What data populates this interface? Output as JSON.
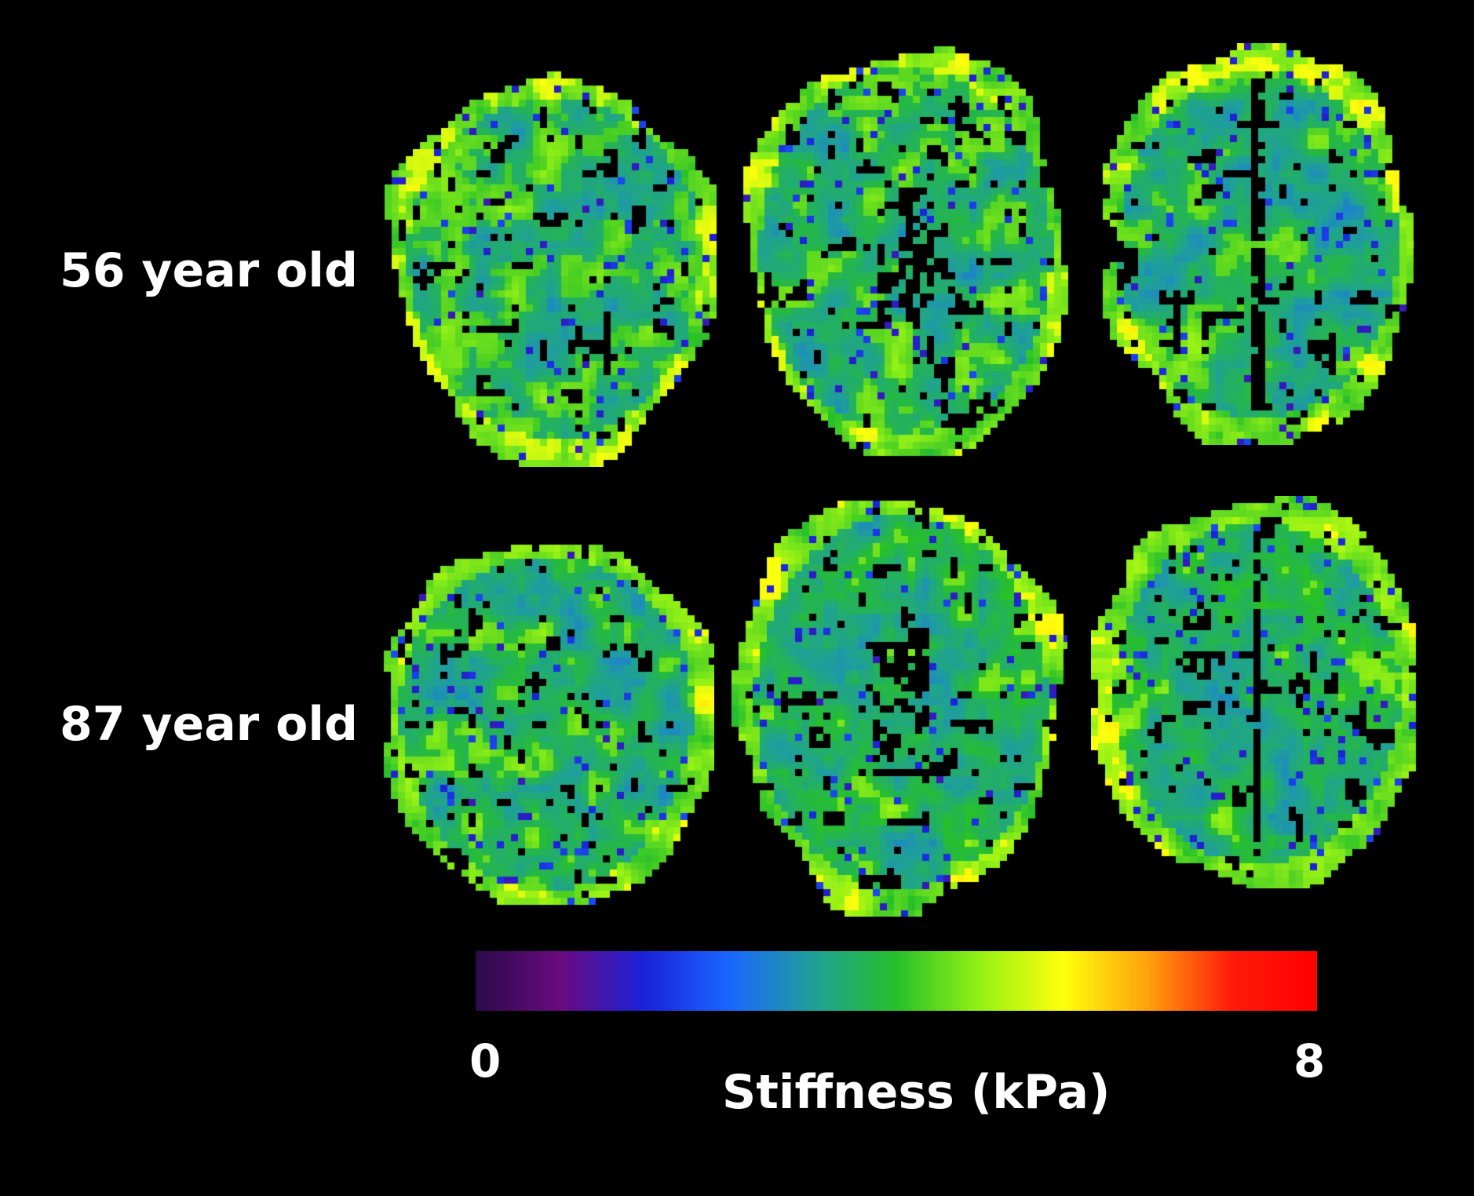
{
  "rows": [
    {
      "label": "56 year old"
    },
    {
      "label": "87 year old"
    }
  ],
  "colorbar": {
    "min_label": "0",
    "max_label": "8",
    "title": "Stiffness (kPa)",
    "colormap": [
      "#2a0a4a",
      "#6a0a80",
      "#1b22d8",
      "#1a66ff",
      "#1f9f9a",
      "#27c02a",
      "#96f215",
      "#ffff0c",
      "#ffa00d",
      "#ff1a0a",
      "#ff0000"
    ]
  },
  "colors": {
    "background": "#000000",
    "text": "#ffffff"
  }
}
